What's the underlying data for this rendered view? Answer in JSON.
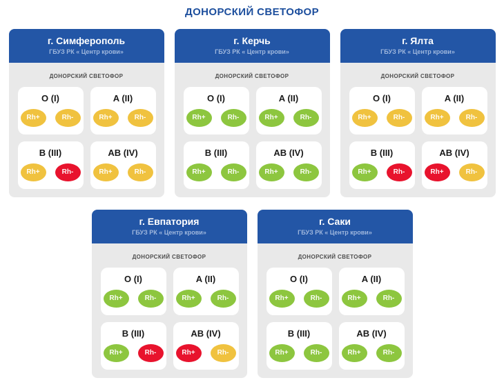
{
  "page": {
    "title": "ДОНОРСКИЙ СВЕТОФОР"
  },
  "labels": {
    "board": "ДОНОРСКИЙ СВЕТОФОР",
    "rh_plus": "Rh+",
    "rh_minus": "Rh-"
  },
  "colors": {
    "green": "#8dc63f",
    "yellow": "#f0c23f",
    "red": "#e8132d",
    "header_blue": "#2356a6",
    "title_blue": "#1c4e9d",
    "body_gray": "#e9e9e9",
    "tile_white": "#ffffff"
  },
  "cards": [
    {
      "city": "г. Симферополь",
      "org": "ГБУЗ РК « Центр крови»",
      "groups": [
        {
          "name": "O (I)",
          "rh_plus": "yellow",
          "rh_minus": "yellow"
        },
        {
          "name": "A (II)",
          "rh_plus": "yellow",
          "rh_minus": "yellow"
        },
        {
          "name": "B (III)",
          "rh_plus": "yellow",
          "rh_minus": "red"
        },
        {
          "name": "AB (IV)",
          "rh_plus": "yellow",
          "rh_minus": "yellow"
        }
      ]
    },
    {
      "city": "г. Керчь",
      "org": "ГБУЗ РК « Центр крови»",
      "groups": [
        {
          "name": "O (I)",
          "rh_plus": "green",
          "rh_minus": "green"
        },
        {
          "name": "A (II)",
          "rh_plus": "green",
          "rh_minus": "green"
        },
        {
          "name": "B (III)",
          "rh_plus": "green",
          "rh_minus": "green"
        },
        {
          "name": "AB (IV)",
          "rh_plus": "green",
          "rh_minus": "green"
        }
      ]
    },
    {
      "city": "г. Ялта",
      "org": "ГБУЗ РК « Центр крови»",
      "groups": [
        {
          "name": "O (I)",
          "rh_plus": "yellow",
          "rh_minus": "yellow"
        },
        {
          "name": "A (II)",
          "rh_plus": "yellow",
          "rh_minus": "yellow"
        },
        {
          "name": "B (III)",
          "rh_plus": "green",
          "rh_minus": "red"
        },
        {
          "name": "AB (IV)",
          "rh_plus": "red",
          "rh_minus": "yellow"
        }
      ]
    },
    {
      "city": "г. Евпатория",
      "org": "ГБУЗ РК « Центр крови»",
      "groups": [
        {
          "name": "O (I)",
          "rh_plus": "green",
          "rh_minus": "green"
        },
        {
          "name": "A (II)",
          "rh_plus": "green",
          "rh_minus": "green"
        },
        {
          "name": "B (III)",
          "rh_plus": "green",
          "rh_minus": "red"
        },
        {
          "name": "AB (IV)",
          "rh_plus": "red",
          "rh_minus": "yellow"
        }
      ]
    },
    {
      "city": "г. Саки",
      "org": "ГБУЗ РК « Центр крови»",
      "groups": [
        {
          "name": "O (I)",
          "rh_plus": "green",
          "rh_minus": "green"
        },
        {
          "name": "A (II)",
          "rh_plus": "green",
          "rh_minus": "green"
        },
        {
          "name": "B (III)",
          "rh_plus": "green",
          "rh_minus": "green"
        },
        {
          "name": "AB (IV)",
          "rh_plus": "green",
          "rh_minus": "green"
        }
      ]
    }
  ]
}
